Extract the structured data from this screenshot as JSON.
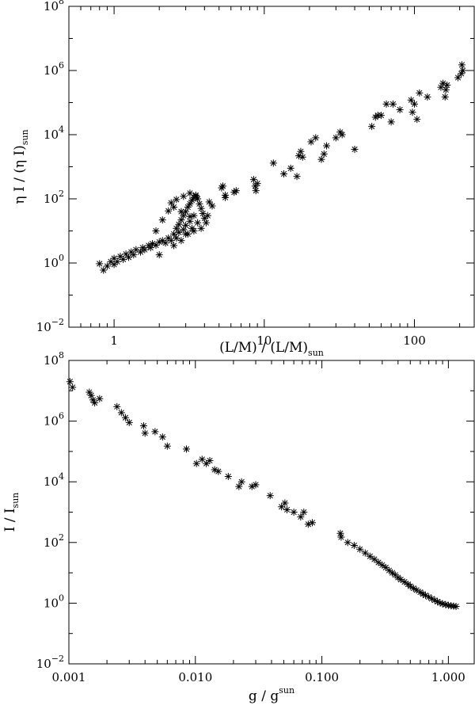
{
  "chart_data": [
    {
      "type": "scatter",
      "marker": "asterisk",
      "xscale": "log",
      "yscale": "log",
      "xlim": [
        0.5,
        250
      ],
      "ylim": [
        0.01,
        100000000
      ],
      "xticks": [
        {
          "value": 1,
          "label": "1"
        },
        {
          "value": 10,
          "label": "10"
        },
        {
          "value": 100,
          "label": "100"
        }
      ],
      "yticks": [
        {
          "value": 0.01,
          "base": "10",
          "exp": "−2"
        },
        {
          "value": 1,
          "base": "10",
          "exp": "0"
        },
        {
          "value": 100,
          "base": "10",
          "exp": "2"
        },
        {
          "value": 10000,
          "base": "10",
          "exp": "4"
        },
        {
          "value": 1000000,
          "base": "10",
          "exp": "6"
        },
        {
          "value": 100000000,
          "base": "10",
          "exp": "8"
        }
      ],
      "xlabel": {
        "main": "(L/M) / (L/M)",
        "sub": "sun"
      },
      "ylabel": {
        "main": "η I / (η I)",
        "sub": "sun"
      },
      "grid": false,
      "points": [
        [
          0.8,
          0.95
        ],
        [
          0.85,
          0.6
        ],
        [
          0.9,
          0.8
        ],
        [
          0.95,
          1.1
        ],
        [
          1.0,
          0.9
        ],
        [
          1.0,
          1.4
        ],
        [
          1.05,
          1.1
        ],
        [
          1.1,
          1.6
        ],
        [
          1.15,
          1.3
        ],
        [
          1.2,
          1.9
        ],
        [
          1.25,
          1.5
        ],
        [
          1.3,
          2.2
        ],
        [
          1.35,
          1.8
        ],
        [
          1.4,
          2.6
        ],
        [
          1.5,
          2.2
        ],
        [
          1.55,
          3.0
        ],
        [
          1.6,
          2.6
        ],
        [
          1.7,
          3.5
        ],
        [
          1.75,
          3.0
        ],
        [
          1.8,
          4.0
        ],
        [
          1.9,
          3.6
        ],
        [
          2.0,
          4.5
        ],
        [
          2.0,
          1.8
        ],
        [
          2.1,
          5.0
        ],
        [
          2.2,
          4.2
        ],
        [
          2.3,
          6.0
        ],
        [
          2.4,
          5.0
        ],
        [
          2.5,
          8.0
        ],
        [
          2.5,
          3.5
        ],
        [
          2.6,
          12
        ],
        [
          2.6,
          6
        ],
        [
          2.7,
          16
        ],
        [
          2.7,
          9
        ],
        [
          2.8,
          22
        ],
        [
          2.8,
          5
        ],
        [
          2.9,
          30
        ],
        [
          2.9,
          11
        ],
        [
          3.0,
          40
        ],
        [
          3.0,
          15
        ],
        [
          3.1,
          55
        ],
        [
          3.1,
          8
        ],
        [
          3.2,
          70
        ],
        [
          3.2,
          20
        ],
        [
          3.3,
          90
        ],
        [
          3.3,
          12
        ],
        [
          3.4,
          110
        ],
        [
          3.4,
          30
        ],
        [
          3.5,
          130
        ],
        [
          3.6,
          100
        ],
        [
          3.7,
          70
        ],
        [
          3.8,
          50
        ],
        [
          3.9,
          35
        ],
        [
          4.0,
          25
        ],
        [
          4.1,
          18
        ],
        [
          3.6,
          18
        ],
        [
          3.2,
          28
        ],
        [
          2.8,
          40
        ],
        [
          2.5,
          55
        ],
        [
          2.3,
          42
        ],
        [
          2.1,
          22
        ],
        [
          1.9,
          10
        ],
        [
          2.4,
          75
        ],
        [
          2.6,
          95
        ],
        [
          2.9,
          120
        ],
        [
          3.2,
          150
        ],
        [
          3.5,
          120
        ],
        [
          3.0,
          8
        ],
        [
          3.4,
          10
        ],
        [
          3.8,
          12
        ],
        [
          4.2,
          30
        ],
        [
          4.5,
          60
        ],
        [
          4.3,
          80
        ],
        [
          5.2,
          220
        ],
        [
          5.3,
          250
        ],
        [
          5.5,
          130
        ],
        [
          5.5,
          110
        ],
        [
          6.3,
          160
        ],
        [
          6.5,
          180
        ],
        [
          8.5,
          400
        ],
        [
          8.7,
          250
        ],
        [
          8.8,
          180
        ],
        [
          9.0,
          300
        ],
        [
          11.5,
          1300
        ],
        [
          13.5,
          600
        ],
        [
          15.0,
          900
        ],
        [
          16.5,
          500
        ],
        [
          17,
          2200
        ],
        [
          17.5,
          3000
        ],
        [
          18,
          2000
        ],
        [
          20.5,
          6000
        ],
        [
          22,
          8000
        ],
        [
          24,
          1700
        ],
        [
          25,
          2500
        ],
        [
          26,
          4500
        ],
        [
          30,
          8000
        ],
        [
          32,
          12000
        ],
        [
          33,
          10000
        ],
        [
          40,
          3500
        ],
        [
          52,
          18000
        ],
        [
          55,
          35000
        ],
        [
          57,
          40000
        ],
        [
          60,
          40000
        ],
        [
          65,
          90000
        ],
        [
          70,
          25000
        ],
        [
          72,
          90000
        ],
        [
          80,
          60000
        ],
        [
          95,
          120000
        ],
        [
          97,
          50000
        ],
        [
          100,
          90000
        ],
        [
          104,
          30000
        ],
        [
          108,
          200000
        ],
        [
          122,
          150000
        ],
        [
          150,
          300000
        ],
        [
          155,
          400000
        ],
        [
          160,
          150000
        ],
        [
          162,
          250000
        ],
        [
          165,
          350000
        ],
        [
          195,
          600000
        ],
        [
          205,
          800000
        ],
        [
          207,
          1500000
        ],
        [
          210,
          1000000
        ]
      ]
    },
    {
      "type": "scatter",
      "marker": "asterisk",
      "xscale": "log",
      "yscale": "log",
      "xlim": [
        0.001,
        1.6
      ],
      "ylim": [
        0.01,
        100000000
      ],
      "xticks": [
        {
          "value": 0.001,
          "label": "0.001"
        },
        {
          "value": 0.01,
          "label": "0.010"
        },
        {
          "value": 0.1,
          "label": "0.100"
        },
        {
          "value": 1,
          "label": "1.000"
        }
      ],
      "yticks": [
        {
          "value": 0.01,
          "base": "10",
          "exp": "−2"
        },
        {
          "value": 1,
          "base": "10",
          "exp": "0"
        },
        {
          "value": 100,
          "base": "10",
          "exp": "2"
        },
        {
          "value": 10000,
          "base": "10",
          "exp": "4"
        },
        {
          "value": 1000000,
          "base": "10",
          "exp": "6"
        },
        {
          "value": 100000000,
          "base": "10",
          "exp": "8"
        }
      ],
      "xlabel": {
        "main": "g / g",
        "sup": "sun"
      },
      "ylabel": {
        "main": "I / I",
        "sub": "sun"
      },
      "grid": false,
      "points": [
        [
          0.00102,
          20000000
        ],
        [
          0.00107,
          13000000
        ],
        [
          0.00145,
          9000000
        ],
        [
          0.0015,
          7000000
        ],
        [
          0.00155,
          5000000
        ],
        [
          0.0016,
          4000000
        ],
        [
          0.00175,
          5500000
        ],
        [
          0.0024,
          3000000
        ],
        [
          0.0026,
          1900000
        ],
        [
          0.0028,
          1300000
        ],
        [
          0.003,
          900000
        ],
        [
          0.0039,
          700000
        ],
        [
          0.004,
          400000
        ],
        [
          0.0048,
          450000
        ],
        [
          0.0055,
          300000
        ],
        [
          0.006,
          150000
        ],
        [
          0.0085,
          120000
        ],
        [
          0.0102,
          40000
        ],
        [
          0.0113,
          55000
        ],
        [
          0.0122,
          40000
        ],
        [
          0.013,
          50000
        ],
        [
          0.0142,
          25000
        ],
        [
          0.0152,
          22000
        ],
        [
          0.0182,
          15000
        ],
        [
          0.0221,
          7000
        ],
        [
          0.0232,
          10000
        ],
        [
          0.028,
          7000
        ],
        [
          0.03,
          8000
        ],
        [
          0.039,
          3500
        ],
        [
          0.048,
          1500
        ],
        [
          0.051,
          2000
        ],
        [
          0.053,
          1200
        ],
        [
          0.06,
          1000
        ],
        [
          0.068,
          700
        ],
        [
          0.072,
          1000
        ],
        [
          0.078,
          400
        ],
        [
          0.084,
          450
        ],
        [
          0.14,
          200
        ],
        [
          0.142,
          150
        ],
        [
          0.16,
          100
        ],
        [
          0.18,
          80
        ],
        [
          0.2,
          60
        ],
        [
          0.22,
          45
        ],
        [
          0.24,
          35
        ],
        [
          0.26,
          28
        ],
        [
          0.28,
          22
        ],
        [
          0.3,
          18
        ],
        [
          0.32,
          15
        ],
        [
          0.34,
          12
        ],
        [
          0.36,
          10
        ],
        [
          0.38,
          8.5
        ],
        [
          0.4,
          7
        ],
        [
          0.42,
          6
        ],
        [
          0.45,
          5
        ],
        [
          0.48,
          4.2
        ],
        [
          0.5,
          3.6
        ],
        [
          0.53,
          3.1
        ],
        [
          0.56,
          2.7
        ],
        [
          0.6,
          2.3
        ],
        [
          0.63,
          2.0
        ],
        [
          0.66,
          1.8
        ],
        [
          0.7,
          1.6
        ],
        [
          0.74,
          1.4
        ],
        [
          0.78,
          1.25
        ],
        [
          0.82,
          1.12
        ],
        [
          0.86,
          1.02
        ],
        [
          0.9,
          0.95
        ],
        [
          0.95,
          0.9
        ],
        [
          1.0,
          0.85
        ],
        [
          1.05,
          0.82
        ],
        [
          1.1,
          0.8
        ],
        [
          1.15,
          0.78
        ]
      ]
    }
  ]
}
